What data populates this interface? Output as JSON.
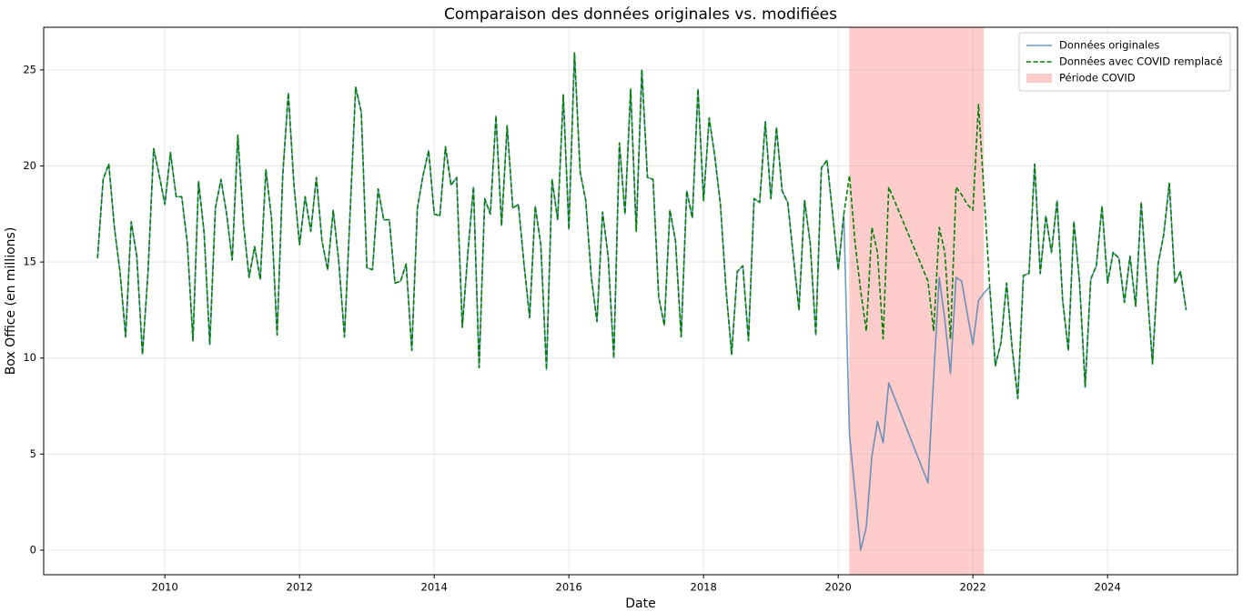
{
  "chart_data": {
    "type": "line",
    "title": "Comparaison des données originales vs. modifiées",
    "xlabel": "Date",
    "ylabel": "Box Office (en millions)",
    "xlim": [
      2008.2,
      2025.93
    ],
    "ylim": [
      -1.28,
      27.22
    ],
    "xticks": [
      2010,
      2012,
      2014,
      2016,
      2018,
      2020,
      2022,
      2024
    ],
    "yticks": [
      0,
      5,
      10,
      15,
      20,
      25
    ],
    "grid": true,
    "legend": "upper right",
    "span": {
      "name": "Période COVID",
      "start": 2020.164,
      "end": 2022.162,
      "color": "#ffcccc"
    },
    "x": [
      2009,
      2009.083,
      2009.167,
      2009.25,
      2009.333,
      2009.417,
      2009.5,
      2009.583,
      2009.667,
      2009.75,
      2009.833,
      2009.917,
      2010,
      2010.083,
      2010.167,
      2010.25,
      2010.333,
      2010.417,
      2010.5,
      2010.583,
      2010.667,
      2010.75,
      2010.833,
      2010.917,
      2011,
      2011.083,
      2011.167,
      2011.25,
      2011.333,
      2011.417,
      2011.5,
      2011.583,
      2011.667,
      2011.75,
      2011.833,
      2011.917,
      2012,
      2012.083,
      2012.167,
      2012.25,
      2012.333,
      2012.417,
      2012.5,
      2012.583,
      2012.667,
      2012.75,
      2012.833,
      2012.917,
      2013,
      2013.083,
      2013.167,
      2013.25,
      2013.333,
      2013.417,
      2013.5,
      2013.583,
      2013.667,
      2013.75,
      2013.833,
      2013.917,
      2014,
      2014.083,
      2014.167,
      2014.25,
      2014.333,
      2014.417,
      2014.5,
      2014.583,
      2014.667,
      2014.75,
      2014.833,
      2014.917,
      2015,
      2015.083,
      2015.167,
      2015.25,
      2015.333,
      2015.417,
      2015.5,
      2015.583,
      2015.667,
      2015.75,
      2015.833,
      2015.917,
      2016,
      2016.083,
      2016.167,
      2016.25,
      2016.333,
      2016.417,
      2016.5,
      2016.583,
      2016.667,
      2016.75,
      2016.833,
      2016.917,
      2017,
      2017.083,
      2017.167,
      2017.25,
      2017.333,
      2017.417,
      2017.5,
      2017.583,
      2017.667,
      2017.75,
      2017.833,
      2017.917,
      2018,
      2018.083,
      2018.167,
      2018.25,
      2018.333,
      2018.417,
      2018.5,
      2018.583,
      2018.667,
      2018.75,
      2018.833,
      2018.917,
      2019,
      2019.083,
      2019.167,
      2019.25,
      2019.333,
      2019.417,
      2019.5,
      2019.583,
      2019.667,
      2019.75,
      2019.833,
      2019.917,
      2020,
      2020.083,
      2020.167,
      2020.25,
      2020.333,
      2020.417,
      2020.5,
      2020.583,
      2020.667,
      2020.75,
      2021.333,
      2021.417,
      2021.5,
      2021.583,
      2021.667,
      2021.75,
      2021.833,
      2021.917,
      2022,
      2022.083,
      2022.167,
      2022.25,
      2022.333,
      2022.417,
      2022.5,
      2022.583,
      2022.667,
      2022.75,
      2022.833,
      2022.917,
      2023,
      2023.083,
      2023.167,
      2023.25,
      2023.333,
      2023.417,
      2023.5,
      2023.583,
      2023.667,
      2023.75,
      2023.833,
      2023.917,
      2024,
      2024.083,
      2024.167,
      2024.25,
      2024.333,
      2024.417,
      2024.5,
      2024.583,
      2024.667,
      2024.75,
      2024.833,
      2024.917,
      2025,
      2025.083,
      2025.167
    ],
    "series": [
      {
        "name": "Données originales",
        "color": "#4682b4",
        "dash": false,
        "values": [
          15.2,
          19.3,
          20.1,
          16.8,
          14.5,
          11.1,
          17.1,
          15.3,
          10.2,
          14.5,
          20.9,
          19.5,
          18.0,
          20.7,
          18.4,
          18.4,
          16.0,
          10.9,
          19.2,
          16.5,
          10.7,
          17.8,
          19.3,
          17.5,
          15.1,
          21.6,
          17.0,
          14.2,
          15.8,
          14.1,
          19.8,
          17.3,
          11.2,
          19.5,
          23.8,
          19.0,
          15.9,
          18.4,
          16.6,
          19.4,
          16.1,
          14.6,
          17.7,
          15.0,
          11.1,
          17.5,
          24.1,
          22.8,
          14.7,
          14.6,
          18.8,
          17.2,
          17.2,
          13.9,
          14.0,
          14.9,
          10.4,
          17.8,
          19.5,
          20.8,
          17.5,
          17.4,
          21.0,
          19.0,
          19.4,
          11.6,
          15.5,
          18.9,
          9.5,
          18.3,
          17.5,
          22.6,
          16.9,
          22.1,
          17.8,
          18.0,
          14.9,
          12.1,
          17.9,
          15.9,
          9.4,
          19.3,
          17.2,
          23.7,
          16.7,
          25.9,
          19.7,
          18.2,
          14.2,
          11.9,
          17.6,
          15.3,
          10.0,
          21.2,
          17.5,
          24.0,
          16.6,
          25.0,
          19.4,
          19.3,
          13.2,
          11.7,
          17.7,
          16.1,
          11.1,
          18.7,
          17.3,
          24.0,
          18.2,
          22.5,
          20.5,
          18.0,
          13.6,
          10.2,
          14.5,
          14.8,
          10.9,
          18.3,
          18.1,
          22.3,
          18.3,
          22.0,
          18.7,
          18.1,
          15.3,
          12.5,
          18.2,
          16.0,
          11.2,
          19.9,
          20.3,
          17.5,
          14.6,
          17.5,
          6.0,
          3.0,
          0.0,
          1.2,
          4.9,
          6.7,
          5.6,
          8.7,
          3.5,
          9.0,
          14.2,
          12.0,
          9.2,
          14.2,
          14.0,
          12.3,
          10.7,
          13.0,
          13.4,
          13.7,
          9.6,
          10.8,
          13.9,
          10.5,
          7.9,
          14.3,
          14.4,
          20.1,
          14.4,
          17.4,
          15.5,
          18.2,
          13.0,
          10.4,
          17.1,
          14.0,
          8.5,
          14.1,
          14.8,
          17.9,
          13.9,
          15.5,
          15.2,
          12.9,
          15.3,
          12.7,
          18.1,
          13.8,
          9.7,
          14.9,
          16.4,
          19.1,
          13.9,
          14.5,
          12.5
        ]
      },
      {
        "name": "Données avec COVID remplacé",
        "color": "#008000",
        "dash": true,
        "values": [
          15.2,
          19.3,
          20.1,
          16.8,
          14.5,
          11.1,
          17.1,
          15.3,
          10.2,
          14.5,
          20.9,
          19.5,
          18.0,
          20.7,
          18.4,
          18.4,
          16.0,
          10.9,
          19.2,
          16.5,
          10.7,
          17.8,
          19.3,
          17.5,
          15.1,
          21.6,
          17.0,
          14.2,
          15.8,
          14.1,
          19.8,
          17.3,
          11.2,
          19.5,
          23.8,
          19.0,
          15.9,
          18.4,
          16.6,
          19.4,
          16.1,
          14.6,
          17.7,
          15.0,
          11.1,
          17.5,
          24.1,
          22.8,
          14.7,
          14.6,
          18.8,
          17.2,
          17.2,
          13.9,
          14.0,
          14.9,
          10.4,
          17.8,
          19.5,
          20.8,
          17.5,
          17.4,
          21.0,
          19.0,
          19.4,
          11.6,
          15.5,
          18.9,
          9.5,
          18.3,
          17.5,
          22.6,
          16.9,
          22.1,
          17.8,
          18.0,
          14.9,
          12.1,
          17.9,
          15.9,
          9.4,
          19.3,
          17.2,
          23.7,
          16.7,
          25.9,
          19.7,
          18.2,
          14.2,
          11.9,
          17.6,
          15.3,
          10.0,
          21.2,
          17.5,
          24.0,
          16.6,
          25.0,
          19.4,
          19.3,
          13.2,
          11.7,
          17.7,
          16.1,
          11.1,
          18.7,
          17.3,
          24.0,
          18.2,
          22.5,
          20.5,
          18.0,
          13.6,
          10.2,
          14.5,
          14.8,
          10.9,
          18.3,
          18.1,
          22.3,
          18.3,
          22.0,
          18.7,
          18.1,
          15.3,
          12.5,
          18.2,
          16.0,
          11.2,
          19.9,
          20.3,
          17.5,
          14.6,
          17.5,
          19.5,
          16.0,
          13.5,
          11.4,
          16.8,
          15.5,
          11.0,
          18.9,
          14.0,
          11.4,
          16.8,
          15.5,
          11.0,
          18.9,
          18.5,
          18.0,
          17.7,
          23.2,
          18.5,
          13.7,
          9.6,
          10.8,
          13.9,
          10.5,
          7.9,
          14.3,
          14.4,
          20.1,
          14.4,
          17.4,
          15.5,
          18.2,
          13.0,
          10.4,
          17.1,
          14.0,
          8.5,
          14.1,
          14.8,
          17.9,
          13.9,
          15.5,
          15.2,
          12.9,
          15.3,
          12.7,
          18.1,
          13.8,
          9.7,
          14.9,
          16.4,
          19.1,
          13.9,
          14.5,
          12.5
        ]
      }
    ]
  }
}
